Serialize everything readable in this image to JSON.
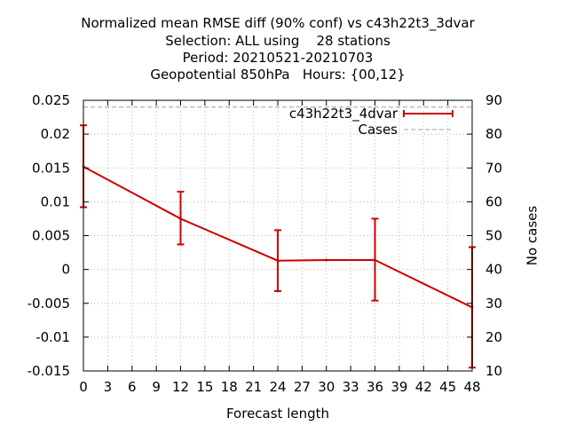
{
  "chart_data": {
    "type": "line",
    "title": [
      "Normalized mean RMSE diff (90% conf) vs c43h22t3_3dvar",
      "Selection: ALL using    28 stations",
      "Period: 20210521-20210703",
      "Geopotential 850hPa   Hours: {00,12}"
    ],
    "xlabel": "Forecast length",
    "ylabel": "",
    "y2label": "No cases",
    "xlim": [
      0,
      48
    ],
    "ylim": [
      -0.015,
      0.025
    ],
    "y2lim": [
      10,
      90
    ],
    "xticks": [
      0,
      3,
      6,
      9,
      12,
      15,
      18,
      21,
      24,
      27,
      30,
      33,
      36,
      39,
      42,
      45,
      48
    ],
    "yticks": [
      "0.025",
      "0.02",
      "0.015",
      "0.01",
      "0.005",
      "0",
      "-0.005",
      "-0.01",
      "-0.015"
    ],
    "yticks_values": [
      0.025,
      0.02,
      0.015,
      0.01,
      0.005,
      0,
      -0.005,
      -0.01,
      -0.015
    ],
    "y2ticks": [
      90,
      80,
      70,
      60,
      50,
      40,
      30,
      20,
      10
    ],
    "grid": true,
    "legend_position": "top-right",
    "series": [
      {
        "name": "c43h22t3_4dvar",
        "color": "#cc0000",
        "style": "errorbars-line",
        "x": [
          0,
          12,
          24,
          30,
          36,
          48
        ],
        "y": [
          0.0152,
          0.0075,
          0.0013,
          0.0014,
          0.0014,
          -0.0056
        ],
        "err_low": [
          0.0092,
          0.0037,
          -0.0032,
          null,
          -0.0046,
          -0.0145
        ],
        "err_high": [
          0.0213,
          0.0115,
          0.0058,
          null,
          0.0075,
          0.0033
        ]
      },
      {
        "name": "Cases",
        "color": "#a0a0a0",
        "style": "dashed",
        "axis": "y2",
        "x": [
          0,
          12,
          24,
          30,
          36,
          48
        ],
        "y": [
          88,
          88,
          88,
          88,
          88,
          88
        ]
      }
    ]
  }
}
